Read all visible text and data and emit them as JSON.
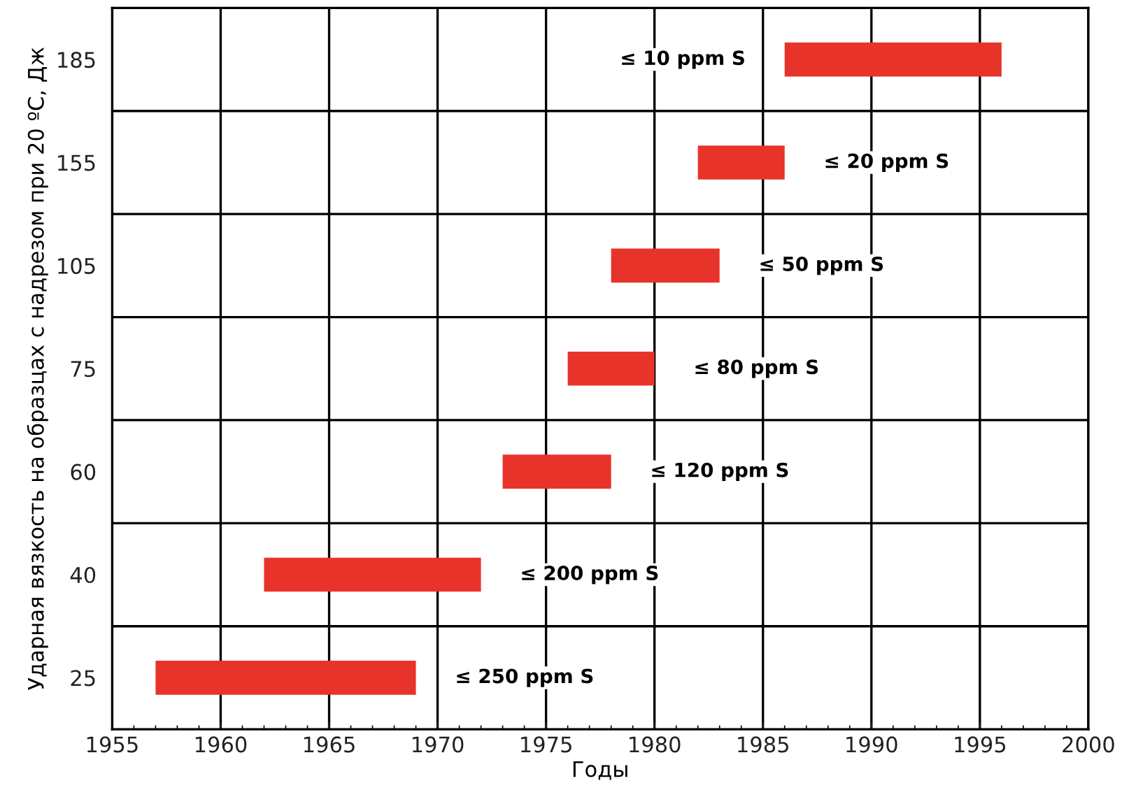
{
  "chart_data": {
    "type": "bar",
    "orientation": "horizontal",
    "categories": [
      "185",
      "155",
      "105",
      "75",
      "60",
      "40",
      "25"
    ],
    "base": [
      1986,
      1982,
      1978,
      1976,
      1973,
      1962,
      1957
    ],
    "values": [
      10,
      4,
      5,
      4,
      5,
      10,
      12
    ],
    "color": "#e8332a",
    "xlabel": "Годы",
    "ylabel": "Ударная вязкость на образцах с надрезом при 20 ºС, Дж",
    "xlim": [
      1955,
      2000
    ],
    "xticks": [
      1955,
      1960,
      1965,
      1970,
      1975,
      1980,
      1985,
      1990,
      1995,
      2000
    ],
    "grid": true,
    "value_labels": [
      "≤ 10 ppm S",
      "≤ 20 ppm S",
      "≤ 50 ppm S",
      "≤ 80 ppm S",
      "≤ 120 ppm S",
      "≤ 200 ppm S",
      "≤ 250 ppm S"
    ]
  }
}
